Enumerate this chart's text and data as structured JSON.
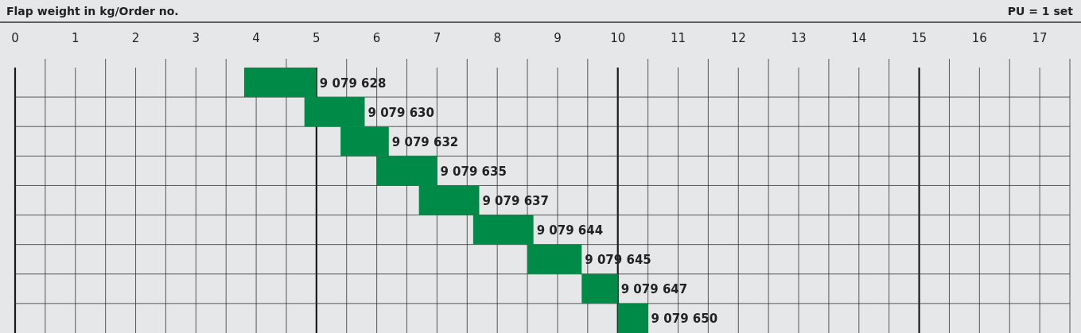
{
  "chart_data": {
    "type": "bar",
    "orientation": "horizontal",
    "title": "Flap weight in kg/Order no.",
    "annotations": [
      "PU = 1 set"
    ],
    "categories": [
      "9 079 628",
      "9 079 630",
      "9 079 632",
      "9 079 635",
      "9 079 637",
      "9 079 644",
      "9 079 645",
      "9 079 647",
      "9 079 650"
    ],
    "base": [
      3.8,
      4.8,
      5.4,
      6.0,
      6.7,
      7.6,
      8.5,
      9.4,
      10.0
    ],
    "values": [
      1.2,
      1.0,
      0.8,
      1.0,
      1.0,
      1.0,
      0.9,
      0.6,
      0.5
    ],
    "color": "#008a47",
    "xlim": [
      0,
      17.5
    ],
    "xticks": [
      0,
      {
        "value": 0.5,
        "label": null
      },
      1,
      {
        "value": 1.5,
        "label": null
      },
      2,
      {
        "value": 2.5,
        "label": null
      },
      3,
      {
        "value": 3.5,
        "label": null
      },
      4,
      {
        "value": 4.5,
        "label": null
      },
      5,
      {
        "value": 5.5,
        "label": null
      },
      6,
      {
        "value": 6.5,
        "label": null
      },
      7,
      {
        "value": 7.5,
        "label": null
      },
      8,
      {
        "value": 8.5,
        "label": null
      },
      9,
      {
        "value": 9.5,
        "label": null
      },
      10,
      {
        "value": 10.5,
        "label": null
      },
      11,
      {
        "value": 11.5,
        "label": null
      },
      12,
      {
        "value": 12.5,
        "label": null
      },
      13,
      {
        "value": 13.5,
        "label": null
      },
      14,
      {
        "value": 14.5,
        "label": null
      },
      15,
      {
        "value": 15.5,
        "label": null
      },
      16,
      {
        "value": 16.5,
        "label": null
      },
      17,
      {
        "value": 17.5,
        "label": null
      }
    ],
    "grid": true
  }
}
